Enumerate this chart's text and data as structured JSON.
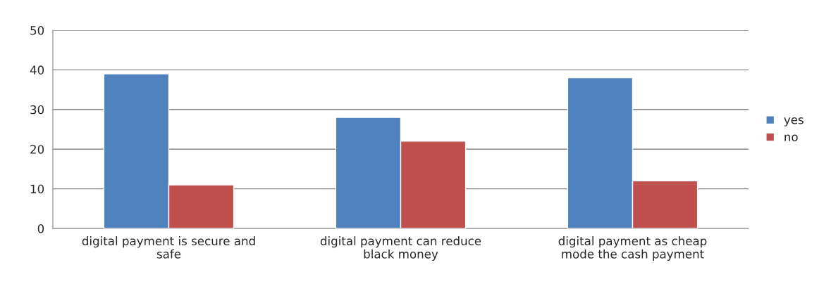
{
  "chart_data": {
    "type": "bar",
    "categories": [
      "digital payment is secure and\nsafe",
      "digital payment can reduce\nblack money",
      "digital payment as cheap\nmode the cash payment"
    ],
    "series": [
      {
        "name": "yes",
        "color": "#4f81bd",
        "values": [
          39,
          28,
          38
        ]
      },
      {
        "name": "no",
        "color": "#c0504d",
        "values": [
          11,
          22,
          12
        ]
      }
    ],
    "ylim": [
      0,
      50
    ],
    "yticks": [
      0,
      10,
      20,
      30,
      40,
      50
    ],
    "grid": "y",
    "legend": "right"
  }
}
